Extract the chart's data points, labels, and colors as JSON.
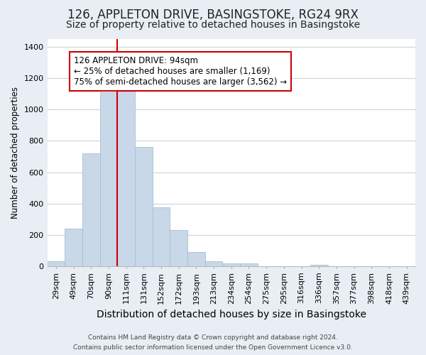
{
  "title": "126, APPLETON DRIVE, BASINGSTOKE, RG24 9RX",
  "subtitle": "Size of property relative to detached houses in Basingstoke",
  "xlabel": "Distribution of detached houses by size in Basingstoke",
  "ylabel": "Number of detached properties",
  "bar_labels": [
    "29sqm",
    "49sqm",
    "70sqm",
    "90sqm",
    "111sqm",
    "131sqm",
    "152sqm",
    "172sqm",
    "193sqm",
    "213sqm",
    "234sqm",
    "254sqm",
    "275sqm",
    "295sqm",
    "316sqm",
    "336sqm",
    "357sqm",
    "377sqm",
    "398sqm",
    "418sqm",
    "439sqm"
  ],
  "bar_values": [
    30,
    240,
    720,
    1110,
    1120,
    760,
    375,
    230,
    90,
    30,
    20,
    20,
    0,
    0,
    0,
    10,
    0,
    0,
    0,
    0,
    0
  ],
  "bar_color": "#c8d8e8",
  "bar_edge_color": "#a8bece",
  "vline_x_index": 3,
  "vline_color": "#cc0000",
  "annotation_text": "126 APPLETON DRIVE: 94sqm\n← 25% of detached houses are smaller (1,169)\n75% of semi-detached houses are larger (3,562) →",
  "annotation_box_color": "#ffffff",
  "annotation_box_edge": "#cc0000",
  "ylim": [
    0,
    1450
  ],
  "yticks": [
    0,
    200,
    400,
    600,
    800,
    1000,
    1200,
    1400
  ],
  "footer_line1": "Contains HM Land Registry data © Crown copyright and database right 2024.",
  "footer_line2": "Contains public sector information licensed under the Open Government Licence v3.0.",
  "title_fontsize": 12,
  "subtitle_fontsize": 10,
  "xlabel_fontsize": 10,
  "ylabel_fontsize": 8.5,
  "tick_fontsize": 8,
  "annotation_fontsize": 8.5,
  "footer_fontsize": 6.5,
  "bg_color": "#e8eef4",
  "plot_bg_color": "#ffffff",
  "grid_color": "#c8d4e0"
}
